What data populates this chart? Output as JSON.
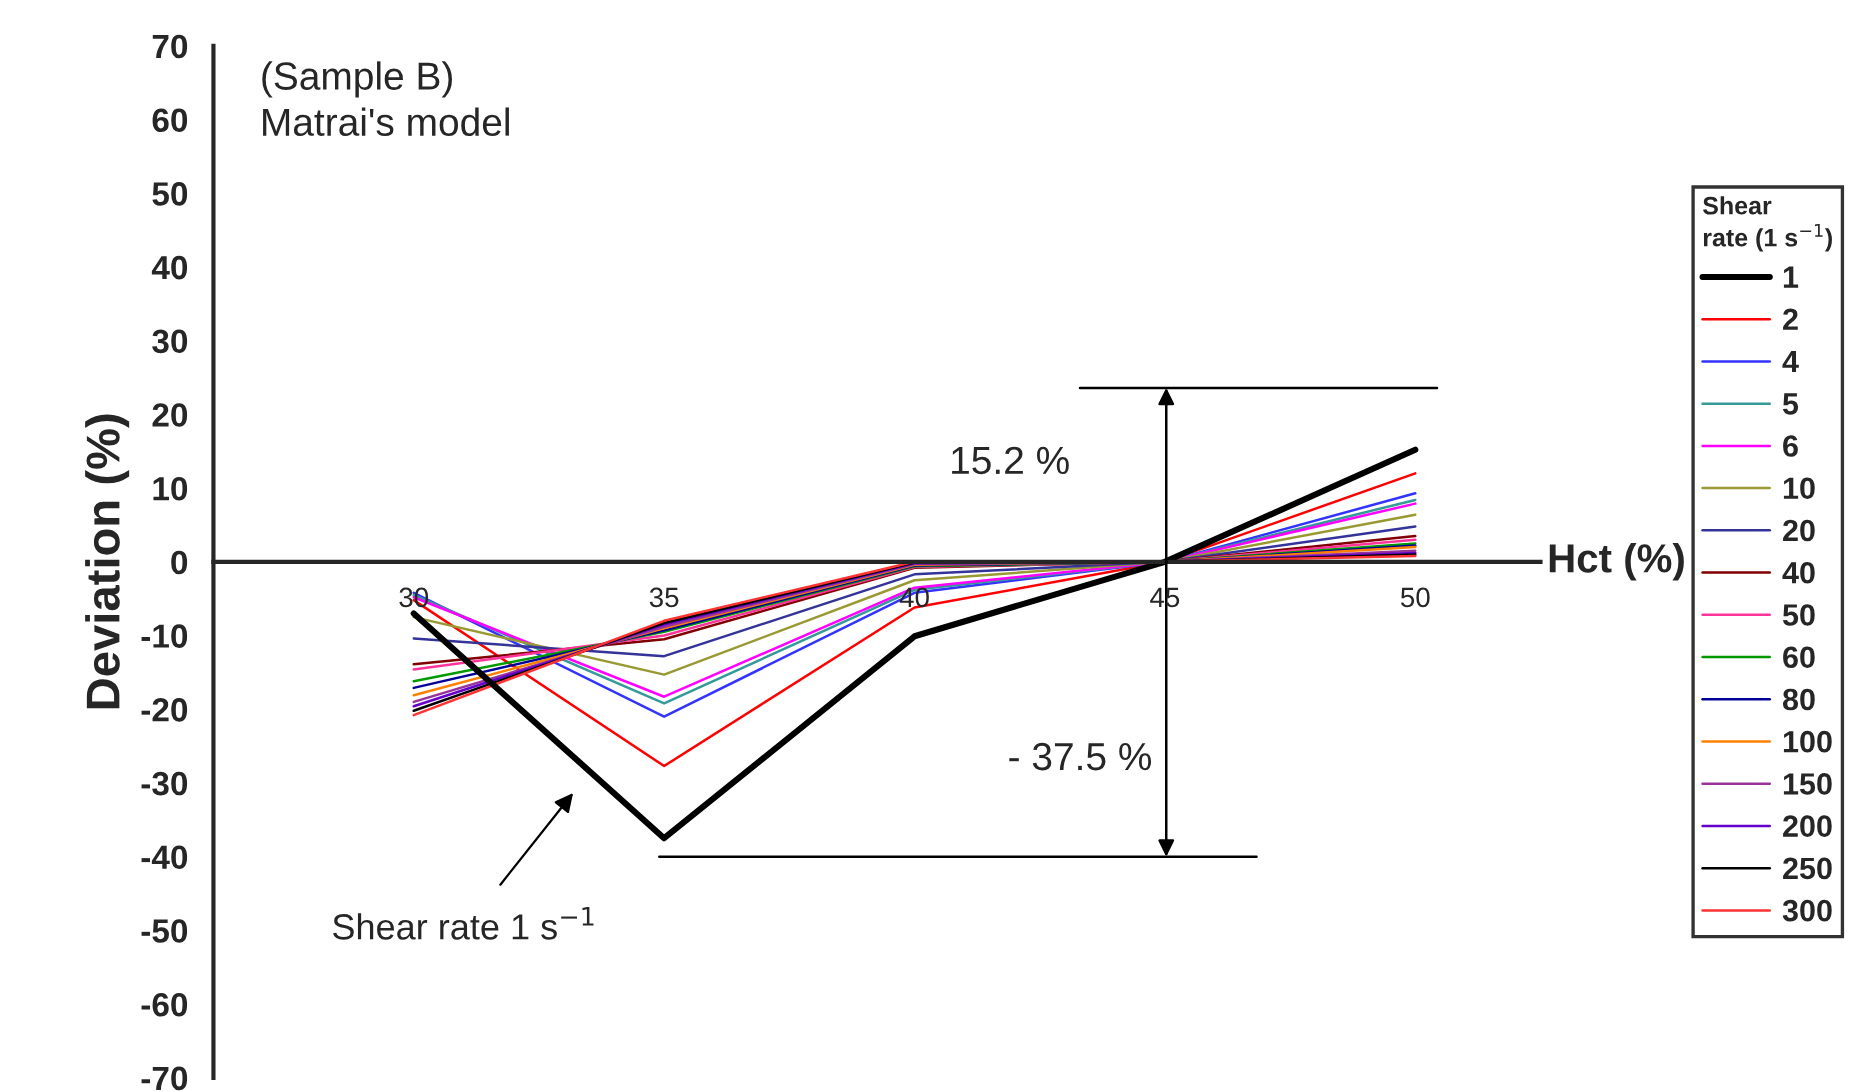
{
  "chart_data": {
    "type": "line",
    "xlabel": "Hct (%)",
    "ylabel": "Deviation (%)",
    "legend_title": "Shear\nrate (1 s$^{−1}$)",
    "x": [
      30,
      35,
      40,
      45,
      50
    ],
    "xlim": [
      26,
      52.5
    ],
    "xticks": [
      30,
      35,
      40,
      45,
      50
    ],
    "ylim": [
      -70,
      70
    ],
    "yticks": [
      -70,
      -60,
      -50,
      -40,
      -30,
      -20,
      -10,
      0,
      10,
      20,
      30,
      40,
      50,
      60,
      70
    ],
    "ref_lines": [
      {
        "axis": "y",
        "value": 23.6,
        "color": "#000000"
      },
      {
        "axis": "y",
        "value": -40,
        "color": "#000000"
      }
    ],
    "grid": false,
    "legend": "right",
    "marker": "none",
    "line_style": "solid",
    "annotations": [
      "(Sample B)\nMatrai's model",
      "15.2 %",
      "- 37.5 %",
      "Shear rate 1 s$^{−1}$"
    ],
    "series": [
      {
        "name": "1",
        "color": "#000000",
        "values": [
          -7,
          -37.5,
          -10.1,
          0,
          15.2
        ]
      },
      {
        "name": "2",
        "color": "#ff0000",
        "values": [
          -5.2,
          -27.7,
          -6.2,
          0,
          12.0
        ]
      },
      {
        "name": "4",
        "color": "#3333ff",
        "values": [
          -4.2,
          -21,
          -4.2,
          0,
          9.3
        ]
      },
      {
        "name": "5",
        "color": "#339999",
        "values": [
          -4.5,
          -19.2,
          -3.8,
          0,
          8.4
        ]
      },
      {
        "name": "6",
        "color": "#ff00ff",
        "values": [
          -4.8,
          -18.3,
          -3.5,
          0,
          7.9
        ]
      },
      {
        "name": "10",
        "color": "#999933",
        "values": [
          -7.5,
          -15.3,
          -2.5,
          0,
          6.4
        ]
      },
      {
        "name": "20",
        "color": "#333399",
        "values": [
          -10.4,
          -12.8,
          -1.7,
          0,
          4.8
        ]
      },
      {
        "name": "40",
        "color": "#800000",
        "values": [
          -13.9,
          -10.5,
          -0.8,
          0,
          3.5
        ]
      },
      {
        "name": "50",
        "color": "#ff3399",
        "values": [
          -14.6,
          -10,
          -0.7,
          0,
          3
        ]
      },
      {
        "name": "60",
        "color": "#009900",
        "values": [
          -16.2,
          -9.5,
          -0.6,
          0,
          2.5
        ]
      },
      {
        "name": "80",
        "color": "#000099",
        "values": [
          -17.1,
          -9.3,
          -0.5,
          0,
          2.2
        ]
      },
      {
        "name": "100",
        "color": "#ff8000",
        "values": [
          -18.1,
          -9,
          -0.4,
          0,
          2
        ]
      },
      {
        "name": "150",
        "color": "#993399",
        "values": [
          -19,
          -8.8,
          -0.3,
          0,
          1.5
        ]
      },
      {
        "name": "200",
        "color": "#6600cc",
        "values": [
          -19.6,
          -8.5,
          -0.2,
          0,
          1.2
        ]
      },
      {
        "name": "250",
        "color": "#000000",
        "values": [
          -20.2,
          -8.3,
          -0.1,
          0,
          1.0
        ]
      },
      {
        "name": "300",
        "color": "#ff3333",
        "values": [
          -20.8,
          -8,
          0,
          0,
          0.8
        ]
      }
    ]
  }
}
